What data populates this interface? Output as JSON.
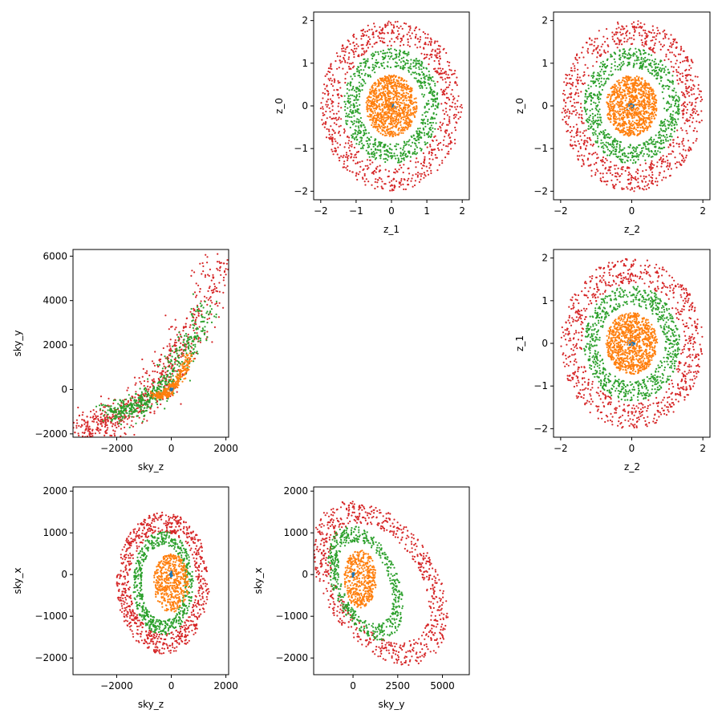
{
  "chart_data": [
    {
      "type": "scatter",
      "id": "z1_vs_z0",
      "xlabel": "z_1",
      "ylabel": "z_0",
      "xlim": [
        -2.2,
        2.2
      ],
      "ylim": [
        -2.2,
        2.2
      ],
      "xticks": [
        -2,
        -1,
        0,
        1,
        2
      ],
      "yticks": [
        -2,
        -1,
        0,
        1,
        2
      ],
      "xtick_labels": [
        "−2",
        "−1",
        "0",
        "1",
        "2"
      ],
      "ytick_labels": [
        "−2",
        "−1",
        "0",
        "1",
        "2"
      ],
      "grid": false,
      "series": [
        {
          "color": "#1f77b4",
          "shape": "core",
          "radius": 0.08,
          "count": 30
        },
        {
          "color": "#ff7f0e",
          "shape": "filled-disk",
          "radius": 0.72,
          "count": 900
        },
        {
          "color": "#2ca02c",
          "shape": "shell",
          "inner_radius": 0.9,
          "outer_radius": 1.35,
          "count": 750
        },
        {
          "color": "#d62728",
          "shape": "shell",
          "inner_radius": 1.4,
          "outer_radius": 2.0,
          "count": 800
        }
      ]
    },
    {
      "type": "scatter",
      "id": "z2_vs_z0",
      "xlabel": "z_2",
      "ylabel": "z_0",
      "xlim": [
        -2.2,
        2.2
      ],
      "ylim": [
        -2.2,
        2.2
      ],
      "xticks": [
        -2,
        -1,
        0,
        1,
        2
      ],
      "yticks": [
        -2,
        -1,
        0,
        1,
        2
      ],
      "xtick_labels": [
        "−2",
        "0",
        "2"
      ],
      "xtick_values_shown": [
        -2,
        0,
        2
      ],
      "ytick_labels": [
        "−2",
        "−1",
        "0",
        "1",
        "2"
      ],
      "grid": false,
      "series": [
        {
          "color": "#1f77b4",
          "shape": "core",
          "radius": 0.08,
          "count": 30
        },
        {
          "color": "#ff7f0e",
          "shape": "filled-disk",
          "radius": 0.72,
          "count": 900
        },
        {
          "color": "#2ca02c",
          "shape": "shell",
          "inner_radius": 0.9,
          "outer_radius": 1.35,
          "count": 750
        },
        {
          "color": "#d62728",
          "shape": "shell",
          "inner_radius": 1.4,
          "outer_radius": 2.0,
          "count": 800
        }
      ]
    },
    {
      "type": "scatter",
      "id": "skyz_vs_skyy",
      "xlabel": "sky_z",
      "ylabel": "sky_y",
      "xlim": [
        -3600,
        2100
      ],
      "ylim": [
        -2150,
        6300
      ],
      "xticks": [
        -2000,
        0,
        2000
      ],
      "yticks": [
        -2000,
        0,
        2000,
        4000,
        6000
      ],
      "xtick_labels": [
        "−2000",
        "0",
        "2000"
      ],
      "ytick_labels": [
        "−2000",
        "0",
        "2000",
        "4000",
        "6000"
      ],
      "grid": false,
      "series": [
        {
          "color": "#d62728",
          "shape": "curve-band",
          "x_range": [
            -3400,
            1800
          ],
          "y_range": [
            -1700,
            5900
          ],
          "count": 700
        },
        {
          "color": "#2ca02c",
          "shape": "curve-band",
          "x_range": [
            -2300,
            1300
          ],
          "y_range": [
            -1000,
            3900
          ],
          "count": 550
        },
        {
          "color": "#ff7f0e",
          "shape": "curve-band",
          "x_range": [
            -600,
            700
          ],
          "y_range": [
            -300,
            1600
          ],
          "count": 300
        },
        {
          "color": "#1f77b4",
          "shape": "core",
          "x_center": 0,
          "y_center": 0,
          "count": 20
        }
      ]
    },
    {
      "type": "scatter",
      "id": "z2_vs_z1",
      "xlabel": "z_2",
      "ylabel": "z_1",
      "xlim": [
        -2.2,
        2.2
      ],
      "ylim": [
        -2.2,
        2.2
      ],
      "xticks": [
        -2,
        0,
        2
      ],
      "yticks": [
        -2,
        -1,
        0,
        1,
        2
      ],
      "xtick_labels": [
        "−2",
        "0",
        "2"
      ],
      "ytick_labels": [
        "−2",
        "−1",
        "0",
        "1",
        "2"
      ],
      "grid": false,
      "series": [
        {
          "color": "#1f77b4",
          "shape": "core",
          "radius": 0.08,
          "count": 30
        },
        {
          "color": "#ff7f0e",
          "shape": "filled-disk",
          "radius": 0.72,
          "count": 900
        },
        {
          "color": "#2ca02c",
          "shape": "shell",
          "inner_radius": 0.9,
          "outer_radius": 1.35,
          "count": 750
        },
        {
          "color": "#d62728",
          "shape": "shell",
          "inner_radius": 1.4,
          "outer_radius": 2.0,
          "count": 800
        }
      ]
    },
    {
      "type": "scatter",
      "id": "skyz_vs_skyx",
      "xlabel": "sky_z",
      "ylabel": "sky_x",
      "xlim": [
        -3600,
        2100
      ],
      "ylim": [
        -2400,
        2100
      ],
      "xticks": [
        -2000,
        0,
        2000
      ],
      "yticks": [
        -2000,
        -1000,
        0,
        1000,
        2000
      ],
      "xtick_labels": [
        "−2000",
        "0",
        "2000"
      ],
      "ytick_labels": [
        "−2000",
        "−1000",
        "0",
        "1000",
        "2000"
      ],
      "grid": false,
      "series": [
        {
          "color": "#d62728",
          "shape": "blob",
          "cx": -300,
          "cy": -200,
          "rx": 1700,
          "ry": 1700,
          "count": 800
        },
        {
          "color": "#2ca02c",
          "shape": "blob",
          "cx": -300,
          "cy": -200,
          "rx": 1100,
          "ry": 1250,
          "count": 600
        },
        {
          "color": "#ff7f0e",
          "shape": "filled-blob",
          "cx": 0,
          "cy": -200,
          "rx": 650,
          "ry": 700,
          "count": 500
        },
        {
          "color": "#1f77b4",
          "shape": "core",
          "x_center": 0,
          "y_center": 0,
          "count": 20
        }
      ]
    },
    {
      "type": "scatter",
      "id": "skyy_vs_skyx",
      "xlabel": "sky_y",
      "ylabel": "sky_x",
      "xlim": [
        -2200,
        6500
      ],
      "ylim": [
        -2400,
        2100
      ],
      "xticks": [
        0,
        2500,
        5000
      ],
      "yticks": [
        -2000,
        -1000,
        0,
        1000,
        2000
      ],
      "xtick_labels": [
        "0",
        "2500",
        "5000"
      ],
      "ytick_labels": [
        "−2000",
        "−1000",
        "0",
        "1000",
        "2000"
      ],
      "grid": false,
      "series": [
        {
          "color": "#d62728",
          "shape": "wedge",
          "cx": 1500,
          "cy": -200,
          "rx": 3800,
          "ry": 1800,
          "count": 750
        },
        {
          "color": "#2ca02c",
          "shape": "wedge",
          "cx": 700,
          "cy": -200,
          "rx": 2100,
          "ry": 1250,
          "count": 550
        },
        {
          "color": "#ff7f0e",
          "shape": "filled-blob",
          "cx": 400,
          "cy": -100,
          "rx": 900,
          "ry": 700,
          "count": 450
        },
        {
          "color": "#1f77b4",
          "shape": "core",
          "x_center": 0,
          "y_center": 0,
          "count": 20
        }
      ]
    }
  ]
}
